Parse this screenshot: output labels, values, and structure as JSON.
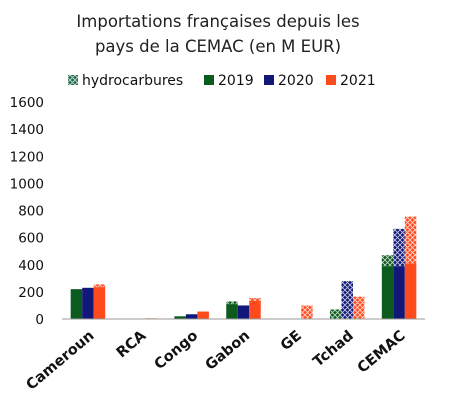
{
  "chart_data": {
    "type": "bar",
    "title": [
      "Importations françaises depuis les",
      "pays de la CEMAC (en M EUR)"
    ],
    "xlabel": "",
    "ylabel": "",
    "categories": [
      "Cameroun",
      "RCA",
      "Congo",
      "Gabon",
      "GE",
      "Tchad",
      "CEMAC"
    ],
    "ylim": [
      0,
      1600
    ],
    "yticks": [
      "1600",
      "1400",
      "1200",
      "1000",
      "800",
      "600",
      "400",
      "200",
      "0"
    ],
    "grid": false,
    "legend_position": "top",
    "legend": [
      {
        "name": "hydrocarbures",
        "pattern": "hatch"
      },
      {
        "name": "2019",
        "color": "#0b5b1f"
      },
      {
        "name": "2020",
        "color": "#11187a"
      },
      {
        "name": "2021",
        "color": "#ff4a1c"
      }
    ],
    "series": [
      {
        "name": "2019",
        "color": "#0b5b1f",
        "values": [
          220,
          2,
          20,
          130,
          0,
          70,
          470
        ],
        "hydrocarbures": [
          0,
          0,
          0,
          20,
          0,
          70,
          80
        ]
      },
      {
        "name": "2020",
        "color": "#11187a",
        "values": [
          230,
          2,
          35,
          100,
          0,
          280,
          665
        ],
        "hydrocarbures": [
          0,
          0,
          0,
          0,
          0,
          280,
          275
        ]
      },
      {
        "name": "2021",
        "color": "#ff4a1c",
        "values": [
          255,
          5,
          55,
          155,
          100,
          165,
          755
        ],
        "hydrocarbures": [
          20,
          0,
          0,
          20,
          100,
          165,
          345
        ]
      }
    ]
  }
}
